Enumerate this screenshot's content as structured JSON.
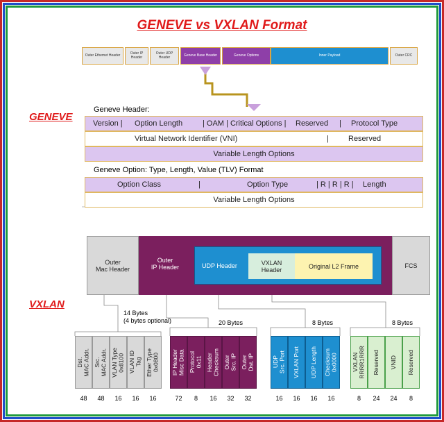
{
  "title": "GENEVE vs VXLAN Format",
  "geneve": {
    "label": "GENEVE",
    "packet": [
      "Outer\nEthernet Header",
      "Outer IP\nHeader",
      "Outer UDP\nHeader",
      "Geneve Base\nHeader",
      "Geneve\nOptions",
      "Inner\nPayload",
      "Outer\nCRC"
    ],
    "header_title": "Geneve Header:",
    "header_rows": [
      [
        "Version |",
        "Option Length",
        "| OAM | Critical Options |",
        "Reserved",
        "|",
        "Protocol Type"
      ],
      [
        "Virtual Network Identifier (VNI)",
        "|",
        "Reserved"
      ],
      [
        "Variable Length Options"
      ]
    ],
    "option_title": "Geneve Option: Type, Length, Value (TLV) Format",
    "option_rows": [
      [
        "Option Class",
        "|",
        "Option Type",
        "| R | R | R |",
        "Length"
      ],
      [
        "Variable Length Options"
      ]
    ]
  },
  "vxlan": {
    "label": "VXLAN",
    "outer_mac": "Outer\nMac Header",
    "outer_ip": "Outer\nIP Header",
    "udp": "UDP Header",
    "vxlan_header": "VXLAN\nHeader",
    "l2": "Original L2 Frame",
    "fcs": "FCS",
    "groups": [
      {
        "bytes": "14 Bytes",
        "note": "(4 bytes optional)",
        "fields": [
          {
            "label": "Dst.\nMAC Addr.",
            "bits": 48
          },
          {
            "label": "Src.\nMAC Addr.",
            "bits": 48
          },
          {
            "label": "VLAN Type\n0x8100",
            "bits": 16
          },
          {
            "label": "VLAN ID\nTag",
            "bits": 16
          },
          {
            "label": "Ether Type\n0x0800",
            "bits": 16
          }
        ]
      },
      {
        "bytes": "20 Bytes",
        "fields": [
          {
            "label": "IP Header\nMisc Data",
            "bits": 72
          },
          {
            "label": "Protocol\n0x11",
            "bits": 8
          },
          {
            "label": "Header\nChecksum",
            "bits": 16
          },
          {
            "label": "Outer\nSrc. IP",
            "bits": 32
          },
          {
            "label": "Outer\nDst. IP",
            "bits": 32
          }
        ]
      },
      {
        "bytes": "8 Bytes",
        "fields": [
          {
            "label": "UDP\nSrc. Port",
            "bits": 16
          },
          {
            "label": "VXLAN Port",
            "bits": 16
          },
          {
            "label": "UDP Length",
            "bits": 16
          },
          {
            "label": "Checksum\n0x0000",
            "bits": 16
          }
        ]
      },
      {
        "bytes": "8 Bytes",
        "fields": [
          {
            "label": "VXLAN\nRRRR1RRR",
            "bits": 8
          },
          {
            "label": "Reserved",
            "bits": 24
          },
          {
            "label": "VNID",
            "bits": 24
          },
          {
            "label": "Reserved",
            "bits": 8
          }
        ]
      }
    ]
  }
}
